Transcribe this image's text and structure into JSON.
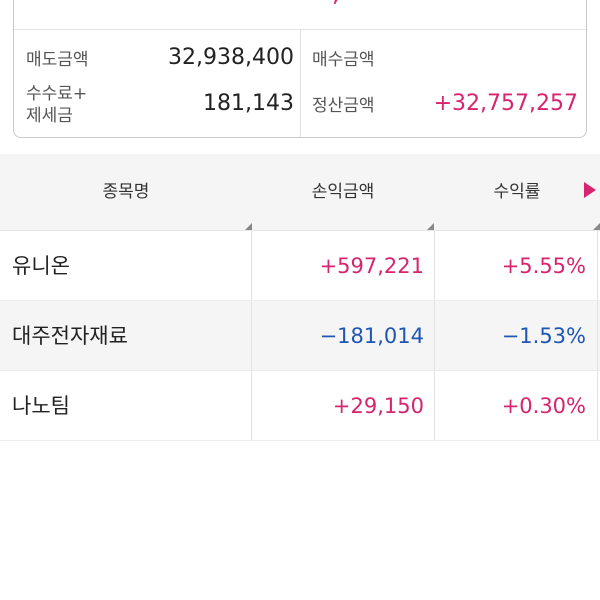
{
  "summary": {
    "top_cut_value": ", —",
    "sell_label": "매도금액",
    "sell_value": "32,938,400",
    "fee_label_line1": "수수료+",
    "fee_label_line2": "제세금",
    "fee_value": "181,143",
    "buy_label": "매수금액",
    "buy_value": "",
    "settle_label": "정산금액",
    "settle_value": "+32,757,257"
  },
  "table": {
    "headers": [
      "종목명",
      "손익금액",
      "수익률"
    ],
    "rows": [
      {
        "name": "유니온",
        "pnl": "+597,221",
        "rate": "+5.55%",
        "sign": "pos"
      },
      {
        "name": "대주전자재료",
        "pnl": "−181,014",
        "rate": "−1.53%",
        "sign": "neg"
      },
      {
        "name": "나노팀",
        "pnl": "+29,150",
        "rate": "+0.30%",
        "sign": "pos"
      }
    ]
  },
  "colors": {
    "positive": "#d6246e",
    "negative": "#1f56b3"
  }
}
